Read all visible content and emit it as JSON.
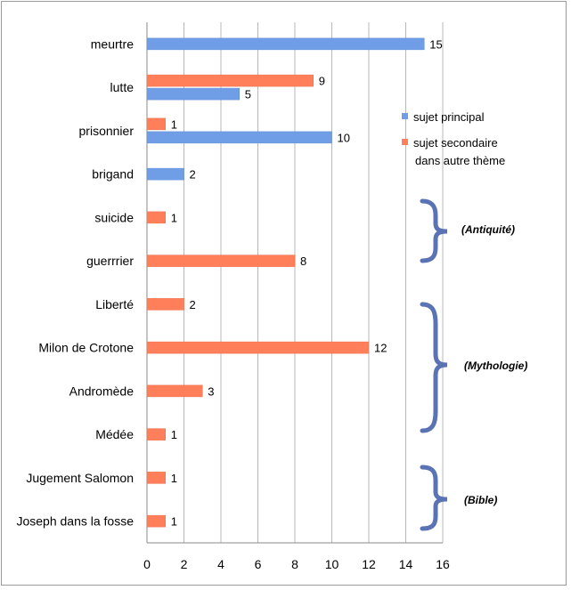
{
  "chart_data": {
    "type": "bar",
    "orientation": "horizontal",
    "xlim": [
      0,
      16
    ],
    "xticks": [
      0,
      2,
      4,
      6,
      8,
      10,
      12,
      14,
      16
    ],
    "grid": true,
    "legend_position": "right",
    "colors": {
      "sujet_principal": "#6f9ee6",
      "sujet_secondaire": "#ff7f5a"
    },
    "categories": [
      "meurtre",
      "lutte",
      "prisonnier",
      "brigand",
      "suicide",
      "guerrrier",
      "Liberté",
      "Milon de Crotone",
      "Andromède",
      "Médée",
      "Jugement Salomon",
      "Joseph dans la fosse"
    ],
    "series": [
      {
        "name": "sujet principal",
        "color": "#6f9ee6",
        "values": [
          15,
          5,
          10,
          2,
          null,
          null,
          null,
          null,
          null,
          null,
          null,
          null
        ]
      },
      {
        "name": "sujet secondaire dans autre thème",
        "color": "#ff7f5a",
        "values": [
          null,
          9,
          1,
          null,
          1,
          8,
          2,
          12,
          3,
          1,
          1,
          1
        ]
      }
    ],
    "legend": [
      {
        "line1": "sujet principal",
        "line2": ""
      },
      {
        "line1": "sujet secondaire",
        "line2": "dans autre thème"
      }
    ],
    "annotations": [
      "(Antiquité)",
      "(Mythologie)",
      "(Bible)"
    ]
  }
}
